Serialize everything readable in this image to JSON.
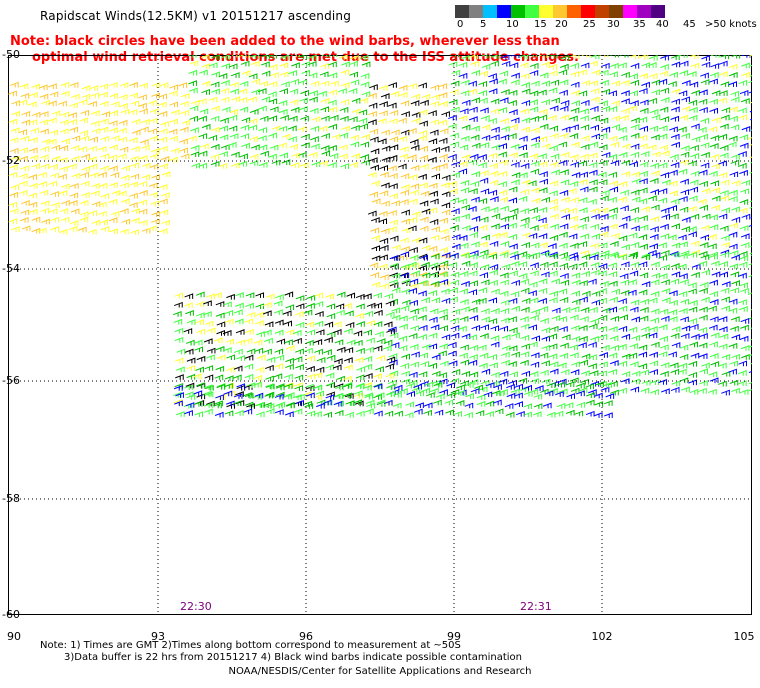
{
  "title": "Rapidscat Winds(12.5KM) v1 20151217 ascending",
  "note": {
    "line1": "Note: black circles have been added to the wind barbs, wherever less than",
    "line2": "optimal wind retrieval conditions are met due to the ISS attitude changes."
  },
  "legend": {
    "colors": [
      "#404040",
      "#808080",
      "#00bfff",
      "#0000ff",
      "#00c000",
      "#40ff40",
      "#ffff30",
      "#ffc830",
      "#ff6000",
      "#ff0000",
      "#c04000",
      "#804000",
      "#ff00ff",
      "#a000c0",
      "#500080"
    ],
    "labels": [
      "0",
      "5",
      "10",
      "15",
      "20",
      "25",
      "30",
      "35",
      "40",
      "45",
      ">50 knots"
    ]
  },
  "map": {
    "latitudes": [
      "-50",
      "-52",
      "-54",
      "-56",
      "-58",
      "-60"
    ],
    "longitudes": [
      "90",
      "93",
      "96",
      "99",
      "102",
      "105"
    ]
  },
  "times": [
    "22:30",
    "22:31"
  ],
  "footnote": {
    "line1": "Note: 1) Times are GMT 2)Times along bottom correspond to measurement at ~50S",
    "line2": "3)Data buffer is 22 hrs from 20151217 4) Black wind barbs indicate possible contamination"
  },
  "credit": "NOAA/NESDIS/Center for Satellite Applications and Research"
}
